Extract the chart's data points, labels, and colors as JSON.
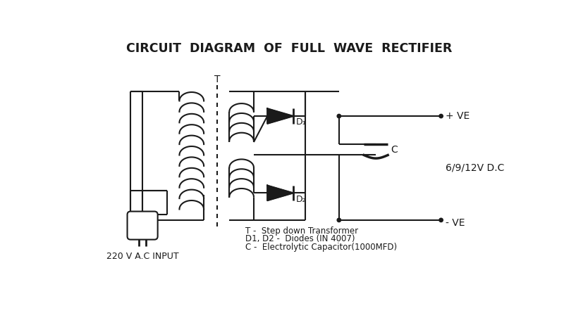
{
  "title": "CIRCUIT  DIAGRAM  OF  FULL  WAVE  RECTIFIER",
  "title_fontsize": 12.5,
  "bg_color": "#ffffff",
  "line_color": "#1a1a1a",
  "line_width": 1.5,
  "legend_lines": [
    "T -  Step down Transformer",
    "D1, D2 -  Diodes (IN 4007)",
    "C -  Electrolytic Capacitor(1000MFD)"
  ],
  "label_T": "T",
  "label_D1": "D₁",
  "label_D2": "D₂",
  "label_C": "C",
  "label_VE_pos": "+ VE",
  "label_VE_neg": "- VE",
  "label_DC": "6/9/12V D.C",
  "label_AC": "220 V A.C INPUT"
}
